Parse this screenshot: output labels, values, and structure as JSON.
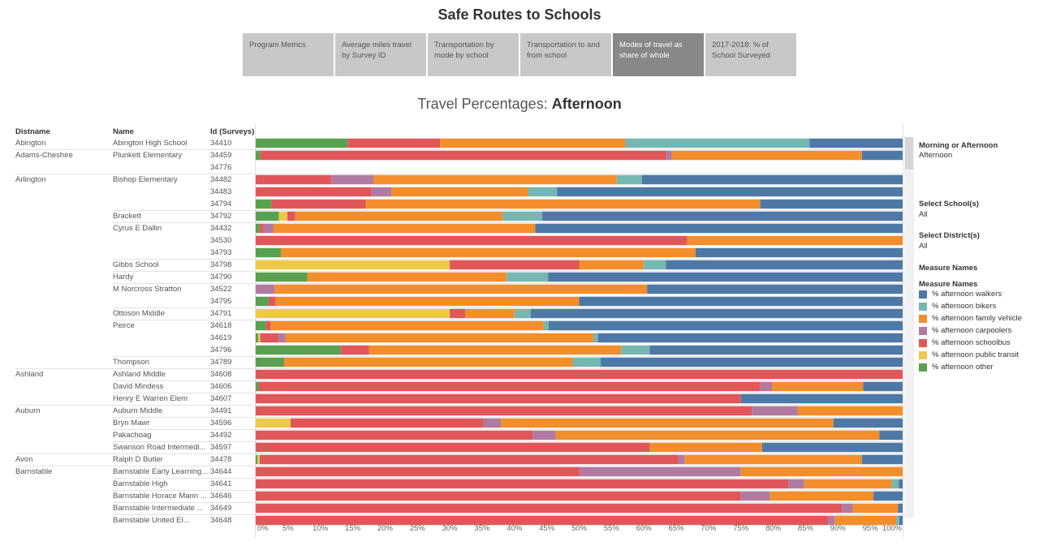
{
  "title": "Safe Routes to Schools",
  "tabs": [
    {
      "label": "Program Metrics",
      "active": false
    },
    {
      "label": "Average miles travel by Survey ID",
      "active": false
    },
    {
      "label": "Transportation by mode by school",
      "active": false
    },
    {
      "label": "Transportation to and from school",
      "active": false
    },
    {
      "label": "Modes of travel as share of whole",
      "active": true
    },
    {
      "label": "2017-2018: % of School Surveyed",
      "active": false
    }
  ],
  "subtitle_prefix": "Travel Percentages:",
  "subtitle_value": "Afternoon",
  "columns": {
    "district": "Distname",
    "name": "Name",
    "id": "Id (Surveys)"
  },
  "sidebar": {
    "morning_label": "Morning or Afternoon",
    "morning_value": "Afternoon",
    "school_label": "Select School(s)",
    "school_value": "All",
    "district_label": "Select District(s)",
    "district_value": "All",
    "measure_names": "Measure Names",
    "legend_title": "Measure Names"
  },
  "chart_data": {
    "type": "bar",
    "orientation": "horizontal",
    "stacked": true,
    "title": "Travel Percentages: Afternoon",
    "xlabel": "",
    "ylabel": "",
    "xlim": [
      0,
      100
    ],
    "x_ticks": [
      "0%",
      "5%",
      "10%",
      "15%",
      "20%",
      "25%",
      "30%",
      "35%",
      "40%",
      "45%",
      "50%",
      "55%",
      "60%",
      "65%",
      "70%",
      "75%",
      "80%",
      "85%",
      "90%",
      "95%",
      "100%"
    ],
    "series": [
      {
        "name": "% afternoon walkers",
        "color": "#4e79a7"
      },
      {
        "name": "% afternoon bikers",
        "color": "#76b7b2"
      },
      {
        "name": "% afternoon family vehicle",
        "color": "#f28e2b"
      },
      {
        "name": "% afternoon carpoolers",
        "color": "#b07aa1"
      },
      {
        "name": "% afternoon schoolbus",
        "color": "#e15759"
      },
      {
        "name": "% afternoon public transit",
        "color": "#edc948"
      },
      {
        "name": "% afternoon other",
        "color": "#59a14f"
      }
    ],
    "segment_order": [
      "other",
      "transit",
      "schoolbus",
      "carpool",
      "family",
      "bikers",
      "walkers"
    ],
    "rows": [
      {
        "district": "Abington",
        "name": "Abington High School",
        "id": "34410",
        "other": 14.2,
        "transit": 0,
        "schoolbus": 14.3,
        "carpool": 0,
        "family": 28.6,
        "bikers": 28.5,
        "walkers": 14.4
      },
      {
        "district": "Adams-Cheshire",
        "name": "Plunkett Elementary",
        "id": "34459",
        "other": 0.7,
        "transit": 0,
        "schoolbus": 62.8,
        "carpool": 0.8,
        "family": 29.4,
        "bikers": 0,
        "walkers": 6.3
      },
      {
        "district": "",
        "name": "",
        "id": "34776",
        "other": 0,
        "transit": 0,
        "schoolbus": 0,
        "carpool": 0,
        "family": 0,
        "bikers": 0,
        "walkers": 0
      },
      {
        "district": "Arlington",
        "name": "Bishop Elementary",
        "id": "34482",
        "other": 0,
        "transit": 0,
        "schoolbus": 11.7,
        "carpool": 6.5,
        "family": 37.6,
        "bikers": 3.9,
        "walkers": 40.3
      },
      {
        "district": "",
        "name": "",
        "id": "34483",
        "other": 0,
        "transit": 0,
        "schoolbus": 17.9,
        "carpool": 3.1,
        "family": 21.1,
        "bikers": 4.5,
        "walkers": 53.4
      },
      {
        "district": "",
        "name": "",
        "id": "34794",
        "other": 2.4,
        "transit": 0,
        "schoolbus": 14.6,
        "carpool": 0,
        "family": 61.0,
        "bikers": 0,
        "walkers": 22.0
      },
      {
        "district": "",
        "name": "Brackett",
        "id": "34792",
        "other": 3.6,
        "transit": 1.3,
        "schoolbus": 1.2,
        "carpool": 0,
        "family": 32.1,
        "bikers": 6.1,
        "walkers": 55.7
      },
      {
        "district": "",
        "name": "Cyrus E Dallin",
        "id": "34432",
        "other": 0.6,
        "transit": 0,
        "schoolbus": 0.6,
        "carpool": 1.5,
        "family": 40.5,
        "bikers": 0,
        "walkers": 56.8
      },
      {
        "district": "",
        "name": "",
        "id": "34530",
        "other": 0,
        "transit": 0,
        "schoolbus": 66.7,
        "carpool": 0,
        "family": 33.3,
        "bikers": 0,
        "walkers": 0
      },
      {
        "district": "",
        "name": "",
        "id": "34793",
        "other": 3.9,
        "transit": 0,
        "schoolbus": 0,
        "carpool": 0,
        "family": 64.1,
        "bikers": 0,
        "walkers": 32.0
      },
      {
        "district": "",
        "name": "Gibbs School",
        "id": "34798",
        "other": 0,
        "transit": 30.0,
        "schoolbus": 20.0,
        "carpool": 0,
        "family": 10.0,
        "bikers": 3.4,
        "walkers": 36.6
      },
      {
        "district": "",
        "name": "Hardy",
        "id": "34790",
        "other": 8.0,
        "transit": 0,
        "schoolbus": 0,
        "carpool": 0,
        "family": 30.8,
        "bikers": 6.4,
        "walkers": 54.8
      },
      {
        "district": "",
        "name": "M Norcross Stratton",
        "id": "34522",
        "other": 0,
        "transit": 0,
        "schoolbus": 0,
        "carpool": 2.9,
        "family": 57.6,
        "bikers": 0,
        "walkers": 39.5
      },
      {
        "district": "",
        "name": "",
        "id": "34795",
        "other": 2.0,
        "transit": 0,
        "schoolbus": 1.1,
        "carpool": 0,
        "family": 46.9,
        "bikers": 0,
        "walkers": 50.0
      },
      {
        "district": "",
        "name": "Ottoson Middle",
        "id": "34791",
        "other": 0,
        "transit": 30.0,
        "schoolbus": 2.4,
        "carpool": 0,
        "family": 7.6,
        "bikers": 2.5,
        "walkers": 57.5
      },
      {
        "district": "",
        "name": "Peirce",
        "id": "34618",
        "other": 1.6,
        "transit": 0,
        "schoolbus": 0.7,
        "carpool": 0,
        "family": 42.2,
        "bikers": 0.8,
        "walkers": 54.7
      },
      {
        "district": "",
        "name": "",
        "id": "34619",
        "other": 0.4,
        "transit": 0.3,
        "schoolbus": 2.9,
        "carpool": 1.0,
        "family": 47.6,
        "bikers": 0.7,
        "walkers": 47.1
      },
      {
        "district": "",
        "name": "",
        "id": "34796",
        "other": 13.1,
        "transit": 0,
        "schoolbus": 4.4,
        "carpool": 0,
        "family": 39.0,
        "bikers": 4.4,
        "walkers": 39.1
      },
      {
        "district": "",
        "name": "Thompson",
        "id": "34789",
        "other": 4.4,
        "transit": 0,
        "schoolbus": 0,
        "carpool": 0,
        "family": 44.6,
        "bikers": 4.3,
        "walkers": 46.7
      },
      {
        "district": "Ashland",
        "name": "Ashland Middle",
        "id": "34608",
        "other": 0,
        "transit": 0,
        "schoolbus": 100.0,
        "carpool": 0,
        "family": 0,
        "bikers": 0,
        "walkers": 0
      },
      {
        "district": "",
        "name": "David Mindess",
        "id": "34606",
        "other": 0.5,
        "transit": 0,
        "schoolbus": 77.5,
        "carpool": 1.8,
        "family": 14.1,
        "bikers": 0,
        "walkers": 6.1
      },
      {
        "district": "",
        "name": "Henry E Warren Elem",
        "id": "34607",
        "other": 0,
        "transit": 0,
        "schoolbus": 75.0,
        "carpool": 0,
        "family": 0,
        "bikers": 0,
        "walkers": 25.0
      },
      {
        "district": "Auburn",
        "name": "Auburn Middle",
        "id": "34491",
        "other": 0,
        "transit": 0,
        "schoolbus": 76.7,
        "carpool": 7.1,
        "family": 16.2,
        "bikers": 0,
        "walkers": 0
      },
      {
        "district": "",
        "name": "Bryn Mawr",
        "id": "34596",
        "other": 0,
        "transit": 5.4,
        "schoolbus": 29.8,
        "carpool": 2.7,
        "family": 51.4,
        "bikers": 0,
        "walkers": 10.7
      },
      {
        "district": "",
        "name": "Pakachoag",
        "id": "34492",
        "other": 0,
        "transit": 0,
        "schoolbus": 42.8,
        "carpool": 3.6,
        "family": 50.0,
        "bikers": 0,
        "walkers": 3.6
      },
      {
        "district": "",
        "name": "Swanson Road Intermedi...",
        "id": "34597",
        "other": 0,
        "transit": 0,
        "schoolbus": 60.9,
        "carpool": 0,
        "family": 17.4,
        "bikers": 0,
        "walkers": 21.7
      },
      {
        "district": "Avon",
        "name": "Ralph D Butler",
        "id": "34478",
        "other": 0.3,
        "transit": 0.3,
        "schoolbus": 64.7,
        "carpool": 1.0,
        "family": 27.4,
        "bikers": 0,
        "walkers": 6.3
      },
      {
        "district": "Barnstable",
        "name": "Barnstable Early Learning...",
        "id": "34644",
        "other": 0,
        "transit": 0,
        "schoolbus": 50.0,
        "carpool": 25.0,
        "family": 25.0,
        "bikers": 0,
        "walkers": 0
      },
      {
        "district": "",
        "name": "Barnstable High",
        "id": "34641",
        "other": 0,
        "transit": 0,
        "schoolbus": 82.4,
        "carpool": 2.4,
        "family": 13.5,
        "bikers": 1.1,
        "walkers": 0.6
      },
      {
        "district": "",
        "name": "Barnstable Horace Mann ...",
        "id": "34646",
        "other": 0,
        "transit": 0,
        "schoolbus": 75.0,
        "carpool": 4.5,
        "family": 16.0,
        "bikers": 0,
        "walkers": 4.5
      },
      {
        "district": "",
        "name": "Barnstable Intermediate ...",
        "id": "34649",
        "other": 0,
        "transit": 0,
        "schoolbus": 90.6,
        "carpool": 1.7,
        "family": 7.0,
        "bikers": 0,
        "walkers": 0.7
      },
      {
        "district": "",
        "name": "Barnstable United El...",
        "id": "34648",
        "other": 0,
        "transit": 0,
        "schoolbus": 88.5,
        "carpool": 1.0,
        "family": 9.5,
        "bikers": 0.5,
        "walkers": 0.5
      }
    ]
  }
}
